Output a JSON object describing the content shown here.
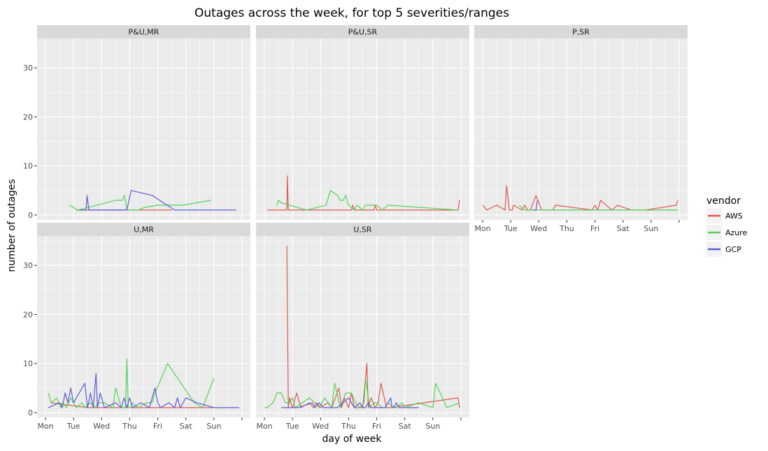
{
  "chart_data": {
    "type": "line",
    "title": "Outages across the week, for top 5 severities/ranges",
    "xlabel": "day of week",
    "ylabel": "number of outages",
    "x_ticks": [
      "Mon",
      "Tue",
      "Wed",
      "Thu",
      "Fri",
      "Sat",
      "Sun",
      ""
    ],
    "y_ticks": [
      0,
      10,
      20,
      30
    ],
    "xlim": [
      -0.3,
      7.3
    ],
    "ylim": [
      -1,
      36
    ],
    "legend": {
      "title": "vendor",
      "position": "right",
      "entries": [
        {
          "name": "AWS",
          "color": "#e0584e"
        },
        {
          "name": "Azure",
          "color": "#52d257"
        },
        {
          "name": "GCP",
          "color": "#5c5bd5"
        }
      ]
    },
    "grid": true,
    "panels": [
      {
        "label": "P&U,MR",
        "show_x_axis": false,
        "series": [
          {
            "name": "AWS",
            "x": [
              1.1,
              2.9,
              3.3,
              4.5
            ],
            "y": [
              1,
              1,
              1,
              1
            ]
          },
          {
            "name": "Azure",
            "x": [
              0.85,
              1.15,
              2.5,
              2.75,
              2.8,
              2.85,
              2.9,
              3.3,
              3.5,
              4.0,
              4.9,
              5.9
            ],
            "y": [
              2,
              1,
              3,
              3,
              4,
              3,
              1,
              1,
              1.5,
              2,
              2,
              3
            ]
          },
          {
            "name": "GCP",
            "x": [
              1.2,
              1.45,
              1.48,
              1.55,
              2.9,
              3.05,
              3.8,
              4.6,
              6.8
            ],
            "y": [
              1,
              1,
              4,
              1,
              1,
              5,
              4,
              1,
              1
            ]
          }
        ]
      },
      {
        "label": "P&U,SR",
        "show_x_axis": false,
        "series": [
          {
            "name": "AWS",
            "x": [
              0.1,
              0.8,
              0.82,
              0.85,
              3.1,
              3.15,
              3.2,
              3.9,
              3.95,
              4.0,
              6.9,
              6.95
            ],
            "y": [
              1,
              1,
              8,
              1,
              1,
              2,
              1,
              1,
              2,
              1,
              1,
              3
            ]
          },
          {
            "name": "Azure",
            "x": [
              0.45,
              0.5,
              0.6,
              1.5,
              2.2,
              2.35,
              2.6,
              2.7,
              2.8,
              2.9,
              3.0,
              3.2,
              3.3,
              3.5,
              3.6,
              3.9,
              4.0,
              4.2,
              4.4,
              6.9
            ],
            "y": [
              2,
              3,
              2.5,
              1,
              2,
              5,
              4,
              3,
              3,
              4,
              2,
              1,
              2,
              1,
              2,
              2,
              2,
              1,
              2,
              1
            ]
          },
          {
            "name": "GCP",
            "x": [],
            "y": []
          }
        ]
      },
      {
        "label": "P,SR",
        "show_x_axis": true,
        "series": [
          {
            "name": "AWS",
            "x": [
              0.0,
              0.15,
              0.5,
              0.8,
              0.85,
              0.95,
              1.05,
              1.1,
              1.4,
              1.5,
              1.6,
              1.7,
              1.9,
              2.1,
              2.5,
              2.6,
              3.9,
              4.0,
              4.1,
              4.2,
              4.6,
              4.8,
              5.3,
              5.8,
              6.9,
              6.95
            ],
            "y": [
              2,
              1,
              2,
              1,
              6,
              1,
              1,
              2,
              1,
              2,
              1,
              1,
              4,
              1,
              1,
              2,
              1,
              2,
              1,
              3,
              1,
              2,
              1,
              1,
              2,
              3
            ]
          },
          {
            "name": "Azure",
            "x": [
              1.3,
              1.5,
              1.6,
              1.8,
              1.9,
              6.95
            ],
            "y": [
              2,
              1,
              1,
              1,
              1,
              1
            ]
          },
          {
            "name": "GCP",
            "x": [
              1.8,
              1.9,
              1.95
            ],
            "y": [
              1,
              1,
              3
            ]
          }
        ]
      },
      {
        "label": "U,MR",
        "show_x_axis": true,
        "series": [
          {
            "name": "AWS",
            "x": [
              0.2,
              1.5,
              2.9,
              3.0,
              5.0,
              6.0
            ],
            "y": [
              2,
              1,
              1,
              1,
              1,
              1
            ]
          },
          {
            "name": "Azure",
            "x": [
              0.1,
              0.2,
              0.4,
              0.55,
              0.6,
              0.75,
              0.9,
              1.1,
              1.3,
              1.4,
              1.6,
              1.75,
              1.9,
              2.1,
              2.4,
              2.5,
              2.7,
              2.85,
              2.9,
              2.95,
              3.05,
              3.1,
              3.3,
              3.6,
              3.8,
              3.9,
              4.35,
              5.3,
              5.6,
              6.0
            ],
            "y": [
              4,
              2,
              3,
              1,
              2,
              1,
              3,
              1,
              2,
              1,
              2,
              1,
              2,
              2,
              1,
              5,
              1,
              1,
              11,
              1,
              1,
              2,
              1,
              2,
              2,
              4,
              10,
              2,
              1,
              7
            ]
          },
          {
            "name": "GCP",
            "x": [
              0.1,
              0.5,
              0.6,
              0.7,
              0.8,
              0.9,
              1.0,
              1.4,
              1.5,
              1.6,
              1.7,
              1.8,
              1.85,
              1.95,
              2.1,
              2.5,
              2.7,
              2.8,
              2.9,
              3.0,
              3.1,
              3.4,
              3.7,
              3.85,
              3.9,
              4.0,
              4.1,
              4.4,
              4.6,
              4.7,
              4.8,
              5.0,
              5.4,
              6.0,
              6.9
            ],
            "y": [
              1,
              2,
              1,
              4,
              2,
              5,
              2,
              6,
              1,
              4,
              1,
              8,
              1,
              4,
              1,
              2,
              1,
              3,
              1,
              3,
              1,
              2,
              1,
              4,
              5,
              2,
              1,
              2,
              1,
              3,
              1,
              3,
              2,
              1,
              1
            ]
          }
        ]
      },
      {
        "label": "U,SR",
        "show_x_axis": true,
        "series": [
          {
            "name": "AWS",
            "x": [
              0.8,
              0.85,
              0.9,
              1.0,
              1.15,
              1.3,
              1.6,
              1.75,
              1.85,
              2.0,
              2.25,
              2.4,
              2.65,
              2.75,
              2.85,
              3.0,
              3.1,
              3.2,
              3.35,
              3.5,
              3.65,
              3.7,
              3.8,
              3.95,
              4.05,
              4.15,
              4.35,
              4.5,
              6.9,
              6.95
            ],
            "y": [
              34,
              1,
              3,
              1,
              4,
              1,
              2,
              1,
              2,
              1,
              2,
              1,
              5,
              1,
              3,
              1,
              4,
              1,
              1,
              1,
              10,
              1,
              3,
              1,
              2,
              6,
              1,
              1,
              3,
              1
            ]
          },
          {
            "name": "Azure",
            "x": [
              0.0,
              0.1,
              0.3,
              0.45,
              0.6,
              0.75,
              0.9,
              1.0,
              1.1,
              1.35,
              1.6,
              1.8,
              1.95,
              2.15,
              2.4,
              2.5,
              2.7,
              2.9,
              3.1,
              3.25,
              3.4,
              3.55,
              3.6,
              3.75,
              3.9,
              4.0,
              4.2,
              4.3,
              4.4,
              4.6,
              4.7,
              4.9,
              5.0,
              5.5,
              6.0,
              6.1,
              6.5,
              6.95
            ],
            "y": [
              1,
              1,
              2,
              4,
              4,
              2,
              2,
              3,
              1,
              2,
              3,
              2,
              1,
              3,
              1,
              6,
              1,
              4,
              4,
              2,
              1,
              2,
              7,
              1,
              2,
              2,
              1,
              1,
              2,
              1,
              1,
              2,
              1,
              2,
              1,
              6,
              1,
              2
            ]
          },
          {
            "name": "GCP",
            "x": [
              0.6,
              1.2,
              1.7,
              1.8,
              1.95,
              2.1,
              2.6,
              2.8,
              3.0,
              3.2,
              3.4,
              3.5,
              3.6,
              3.7,
              3.8,
              4.3,
              4.5,
              4.55,
              4.6,
              4.7,
              4.8,
              5.0,
              5.5
            ],
            "y": [
              1,
              1,
              2,
              1,
              2,
              1,
              1,
              2,
              3,
              1,
              2,
              1,
              1,
              2,
              1,
              1,
              3,
              1,
              1,
              2,
              1,
              1,
              1
            ]
          }
        ]
      }
    ]
  }
}
